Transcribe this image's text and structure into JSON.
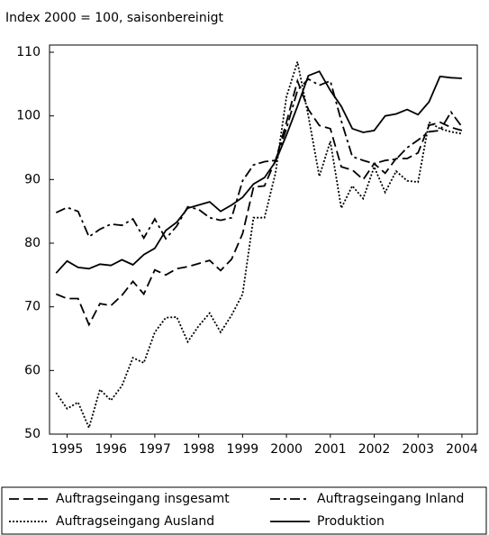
{
  "chart_data": {
    "type": "line",
    "subtitle": "Index 2000 = 100, saisonbereinigt",
    "x": [
      1995.25,
      1995.5,
      1995.75,
      1996,
      1996.25,
      1996.5,
      1996.75,
      1997,
      1997.25,
      1997.5,
      1997.75,
      1998,
      1998.25,
      1998.5,
      1998.75,
      1999,
      1999.25,
      1999.5,
      1999.75,
      2000,
      2000.25,
      2000.5,
      2000.75,
      2001,
      2001.25,
      2001.5,
      2001.75,
      2002,
      2002.25,
      2002.5,
      2002.75,
      2003,
      2003.25,
      2003.5,
      2003.75,
      2004,
      2004.25,
      2004.5
    ],
    "series": [
      {
        "name": "Auftragseingang insgesamt",
        "color": "#000000",
        "dash": "dashed",
        "values": [
          72,
          71.3,
          71.3,
          67.2,
          70.5,
          70.2,
          71.8,
          74,
          72,
          75.8,
          75,
          76,
          76.3,
          76.8,
          77.3,
          75.7,
          77.5,
          81.5,
          88.8,
          89,
          93,
          99,
          105.5,
          101,
          98.5,
          98,
          92,
          91.5,
          90,
          92.5,
          91,
          93.3,
          93.3,
          94.2,
          98.5,
          99,
          98.2,
          97.7
        ]
      },
      {
        "name": "Auftragseingang Inland",
        "color": "#000000",
        "dash": "dashdot",
        "values": [
          84.8,
          85.6,
          85,
          81,
          82.2,
          83,
          82.8,
          83.8,
          80.8,
          83.8,
          80.7,
          82.7,
          85.7,
          85.3,
          84,
          83.6,
          84,
          89.8,
          92.3,
          92.8,
          93,
          98,
          104,
          105.8,
          104.8,
          105.5,
          99.2,
          93.6,
          93,
          92.5,
          93,
          93.2,
          95,
          96.2,
          97.5,
          97.7,
          100.6,
          98.3
        ]
      },
      {
        "name": "Auftragseingang Ausland",
        "color": "#000000",
        "dash": "dotted",
        "values": [
          56.5,
          54,
          55,
          51,
          57,
          55.3,
          57.6,
          62,
          61.2,
          66,
          68.3,
          68.4,
          64.5,
          67,
          69,
          66,
          68.7,
          72,
          84,
          84,
          91,
          103,
          108.5,
          100,
          90.5,
          96,
          85.5,
          89,
          87,
          92,
          88,
          91.3,
          89.8,
          89.6,
          99,
          98,
          97.5,
          97.2
        ]
      },
      {
        "name": "Produktion",
        "color": "#000000",
        "dash": "solid",
        "values": [
          75.3,
          77.2,
          76.2,
          76,
          76.7,
          76.5,
          77.4,
          76.6,
          78.2,
          79.2,
          82,
          83.3,
          85.5,
          86,
          86.5,
          85,
          86,
          87.2,
          89.3,
          90.3,
          92.8,
          97,
          101.5,
          106.3,
          107,
          104,
          101.5,
          98,
          97.4,
          97.7,
          100,
          100.3,
          101,
          100.2,
          102.2,
          106.2,
          106,
          105.9
        ]
      }
    ],
    "xlim": [
      1995.1,
      2004.85
    ],
    "xticks": [
      {
        "value": 1995.5,
        "label": "1995"
      },
      {
        "value": 1996.5,
        "label": "1996"
      },
      {
        "value": 1997.5,
        "label": "1997"
      },
      {
        "value": 1998.5,
        "label": "1998"
      },
      {
        "value": 1999.5,
        "label": "1999"
      },
      {
        "value": 2000.5,
        "label": "2000"
      },
      {
        "value": 2001.5,
        "label": "2001"
      },
      {
        "value": 2002.5,
        "label": "2002"
      },
      {
        "value": 2003.5,
        "label": "2003"
      },
      {
        "value": 2004.5,
        "label": "2004"
      }
    ],
    "ylim": [
      50,
      110
    ],
    "yticks": [
      50,
      60,
      70,
      80,
      90,
      100,
      110
    ],
    "legend": "bottom"
  }
}
